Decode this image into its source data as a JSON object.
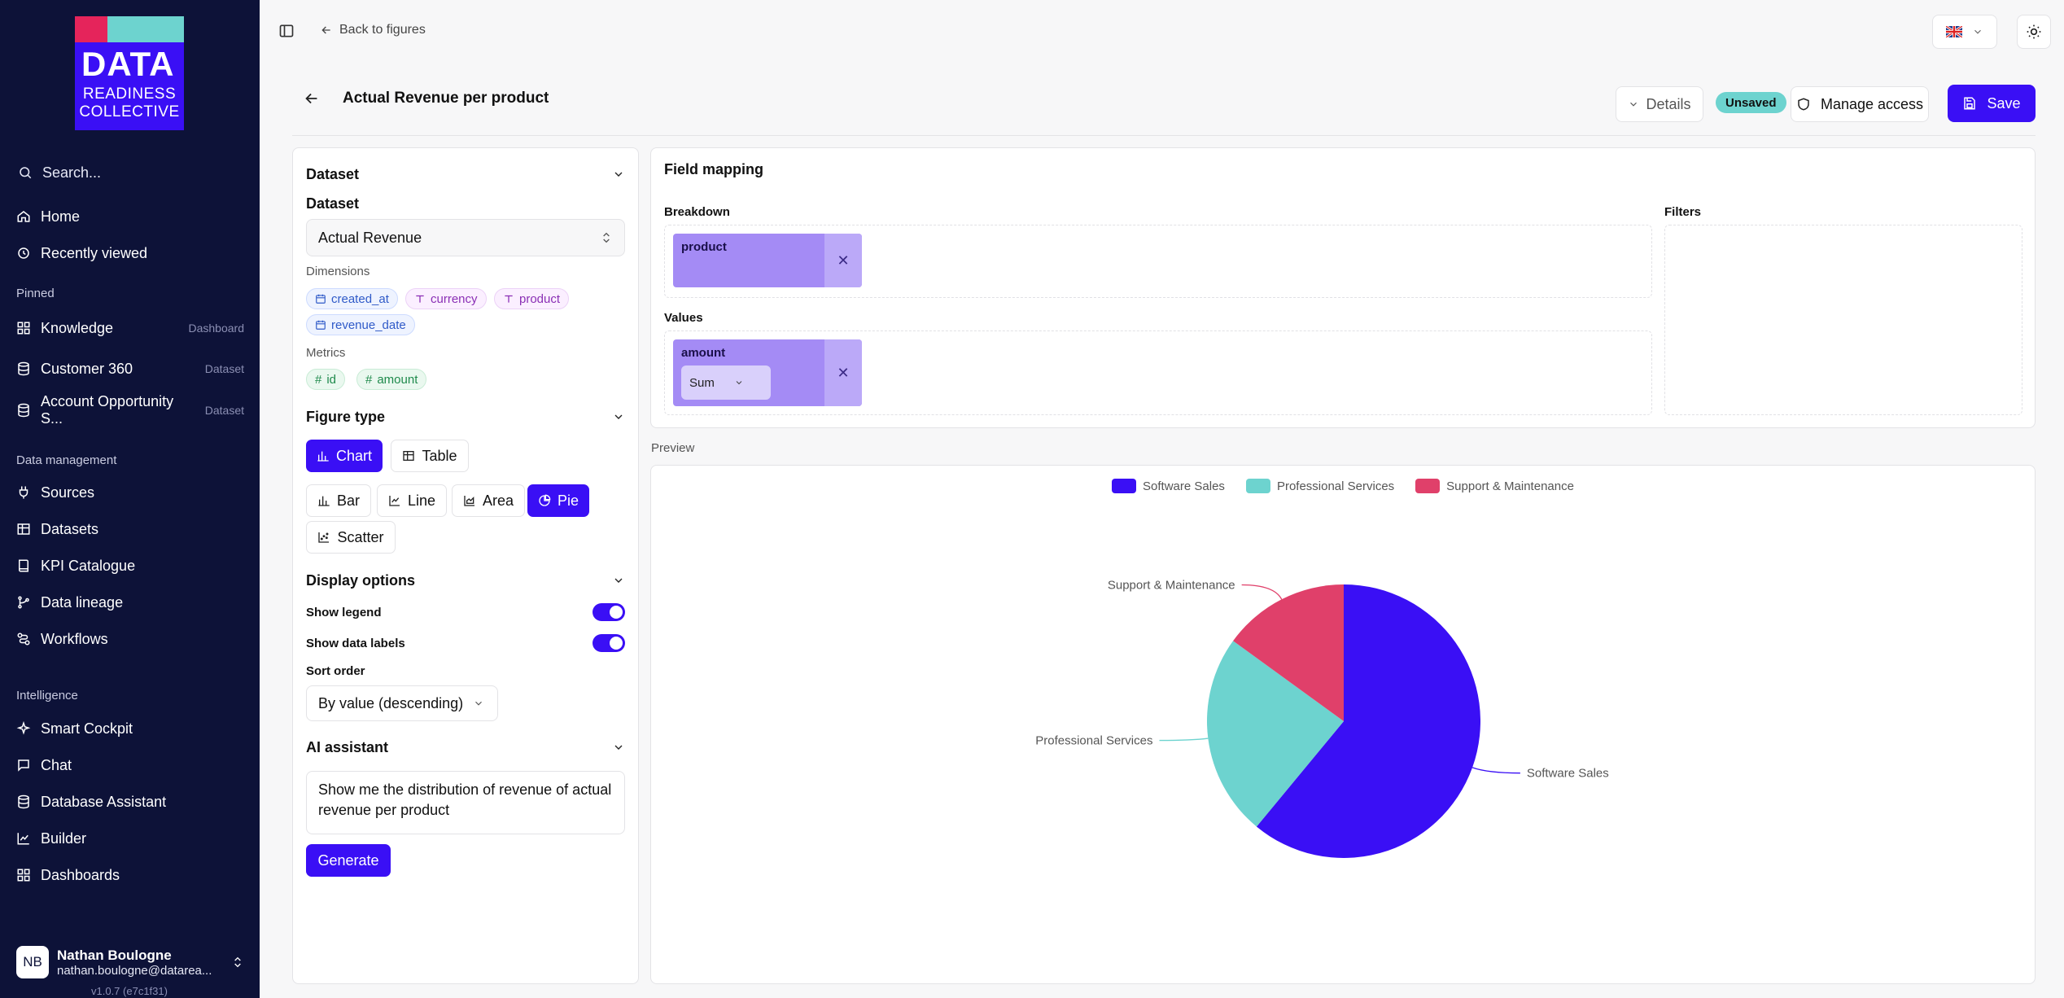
{
  "sidebar": {
    "logo": {
      "line1": "DATA",
      "line2": "READINESS",
      "line3": "COLLECTIVE"
    },
    "search_placeholder": "Search...",
    "items_top": [
      {
        "label": "Home",
        "icon": "home-icon"
      },
      {
        "label": "Recently viewed",
        "icon": "history-icon"
      }
    ],
    "pinned_label": "Pinned",
    "pinned": [
      {
        "label": "Knowledge",
        "tag": "Dashboard",
        "icon": "dashboard-icon"
      },
      {
        "label": "Customer 360",
        "tag": "Dataset",
        "icon": "database-icon"
      },
      {
        "label": "Account Opportunity S...",
        "tag": "Dataset",
        "icon": "database-icon"
      }
    ],
    "data_mgmt_label": "Data management",
    "data_mgmt": [
      {
        "label": "Sources",
        "icon": "plug-icon"
      },
      {
        "label": "Datasets",
        "icon": "table-icon"
      },
      {
        "label": "KPI Catalogue",
        "icon": "book-icon"
      },
      {
        "label": "Data lineage",
        "icon": "lineage-icon"
      },
      {
        "label": "Workflows",
        "icon": "workflow-icon"
      }
    ],
    "intelligence_label": "Intelligence",
    "intelligence": [
      {
        "label": "Smart Cockpit",
        "icon": "sparkle-icon"
      },
      {
        "label": "Chat",
        "icon": "chat-icon"
      },
      {
        "label": "Database Assistant",
        "icon": "database-icon"
      },
      {
        "label": "Builder",
        "icon": "chart-icon"
      },
      {
        "label": "Dashboards",
        "icon": "dashboard-icon"
      }
    ],
    "user": {
      "initials": "NB",
      "name": "Nathan Boulogne",
      "email": "nathan.boulogne@datarea..."
    },
    "version": "v1.0.7 (e7c1f31)"
  },
  "topbar": {
    "back_label": "Back to figures"
  },
  "header": {
    "title": "Actual Revenue per product",
    "details_label": "Details",
    "status_badge": "Unsaved",
    "manage_access_label": "Manage access",
    "save_label": "Save"
  },
  "config": {
    "dataset_section": "Dataset",
    "dataset_label": "Dataset",
    "dataset_value": "Actual Revenue",
    "dimensions_label": "Dimensions",
    "dimensions": [
      "created_at",
      "currency",
      "product",
      "revenue_date"
    ],
    "metrics_label": "Metrics",
    "metrics": [
      "id",
      "amount"
    ],
    "figure_type_section": "Figure type",
    "figure_kinds": [
      "Chart",
      "Table"
    ],
    "chart_types": [
      "Bar",
      "Line",
      "Area",
      "Pie",
      "Scatter"
    ],
    "display_section": "Display options",
    "show_legend_label": "Show legend",
    "show_data_labels_label": "Show data labels",
    "sort_order_label": "Sort order",
    "sort_order_value": "By value (descending)",
    "ai_section": "AI assistant",
    "ai_prompt": "Show me the distribution of revenue of actual revenue per product",
    "generate_label": "Generate"
  },
  "field_mapping": {
    "title": "Field mapping",
    "breakdown_label": "Breakdown",
    "breakdown_field": "product",
    "values_label": "Values",
    "value_field": "amount",
    "aggregation": "Sum",
    "filters_label": "Filters"
  },
  "preview_label": "Preview",
  "chart_data": {
    "type": "pie",
    "categories": [
      "Software Sales",
      "Professional Services",
      "Support & Maintenance"
    ],
    "values": [
      61,
      24,
      15
    ],
    "colors": [
      "#3a0ff5",
      "#6dd3cf",
      "#e0406a"
    ],
    "legend": "top-center",
    "data_labels": true
  }
}
